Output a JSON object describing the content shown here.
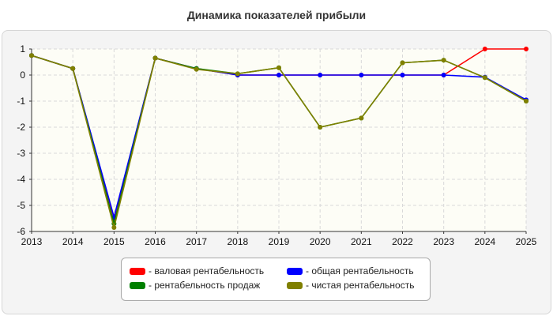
{
  "title": "Динамика показателей прибыли",
  "chart_data": {
    "type": "line",
    "x": [
      "2013",
      "2014",
      "2015",
      "2016",
      "2017",
      "2018",
      "2019",
      "2020",
      "2021",
      "2022",
      "2023",
      "2024",
      "2025"
    ],
    "ylim": [
      -6,
      1
    ],
    "yticks": [
      "1",
      "0",
      "-1",
      "-2",
      "-3",
      "-4",
      "-5",
      "-6"
    ],
    "grid": true,
    "legend_position": "bottom",
    "series": [
      {
        "name": "- валовая рентабельность",
        "color": "#ff0000",
        "values": [
          0.75,
          0.25,
          -5.5,
          0.65,
          0.25,
          0.0,
          0.0,
          0.0,
          0.0,
          0.0,
          0.0,
          1.0,
          1.0
        ]
      },
      {
        "name": "- общая рентабельность",
        "color": "#0000ff",
        "values": [
          0.75,
          0.25,
          -5.45,
          0.65,
          0.25,
          0.0,
          0.0,
          0.0,
          0.0,
          0.0,
          0.0,
          -0.08,
          -0.95
        ]
      },
      {
        "name": "- рентабельность продаж",
        "color": "#008000",
        "values": [
          0.75,
          0.25,
          -5.7,
          0.65,
          0.25,
          0.05,
          0.28,
          -2.0,
          -1.65,
          0.47,
          0.57,
          -0.1,
          -1.0
        ]
      },
      {
        "name": "- чистая рентабельность",
        "color": "#808000",
        "values": [
          0.75,
          0.25,
          -5.85,
          0.65,
          0.22,
          0.05,
          0.28,
          -2.0,
          -1.65,
          0.47,
          0.57,
          -0.1,
          -1.0
        ]
      }
    ]
  }
}
